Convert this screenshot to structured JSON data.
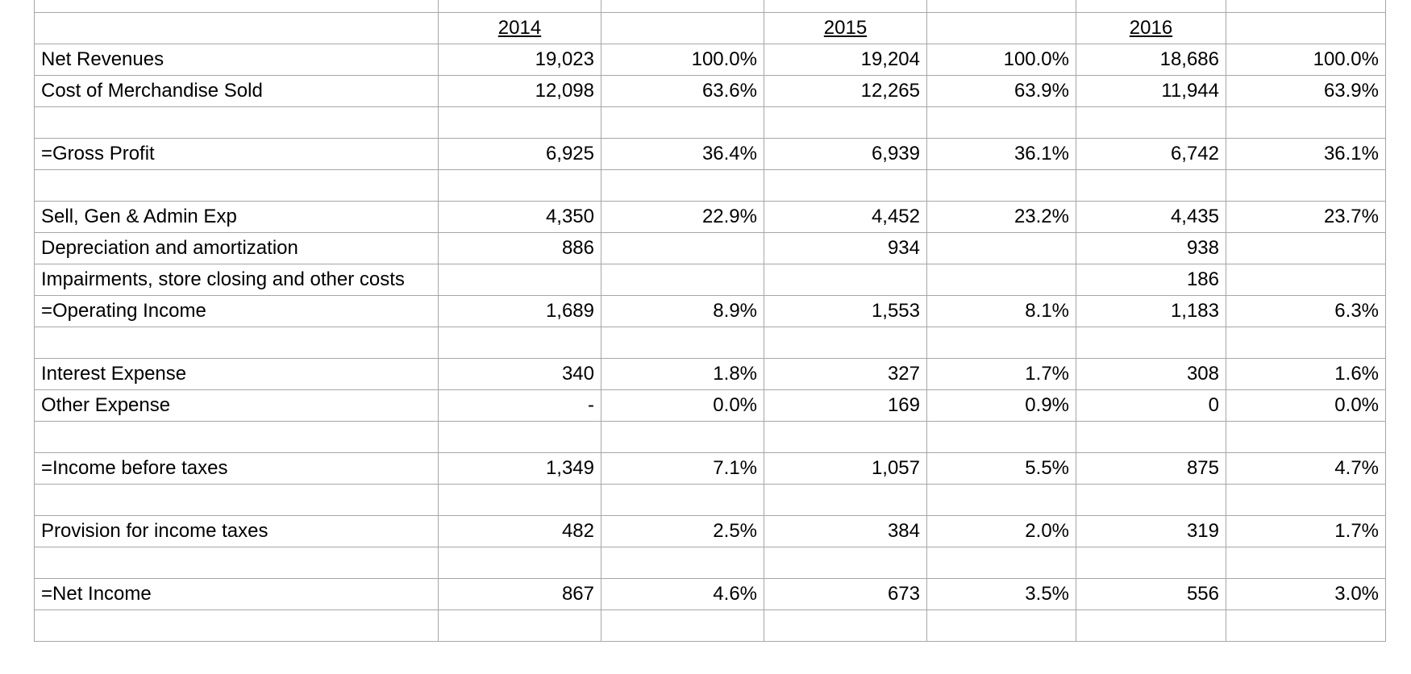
{
  "header": {
    "years": [
      "2014",
      "2015",
      "2016"
    ]
  },
  "rows": [
    {
      "label": "Net Revenues",
      "cells": [
        "19,023",
        "100.0%",
        "19,204",
        "100.0%",
        "18,686",
        "100.0%"
      ]
    },
    {
      "label": "Cost of Merchandise Sold",
      "cells": [
        "12,098",
        "63.6%",
        "12,265",
        "63.9%",
        "11,944",
        "63.9%"
      ]
    },
    null,
    {
      "label": "=Gross Profit",
      "cells": [
        "6,925",
        "36.4%",
        "6,939",
        "36.1%",
        "6,742",
        "36.1%"
      ]
    },
    null,
    {
      "label": "Sell, Gen & Admin Exp",
      "cells": [
        "4,350",
        "22.9%",
        "4,452",
        "23.2%",
        "4,435",
        "23.7%"
      ]
    },
    {
      "label": "Depreciation and amortization",
      "cells": [
        "886",
        null,
        "934",
        null,
        "938",
        null
      ]
    },
    {
      "label": "Impairments, store closing and other costs",
      "cells": [
        null,
        null,
        null,
        null,
        "186",
        null
      ]
    },
    {
      "label": "=Operating Income",
      "cells": [
        "1,689",
        "8.9%",
        "1,553",
        "8.1%",
        "1,183",
        "6.3%"
      ]
    },
    null,
    {
      "label": "Interest Expense",
      "cells": [
        "340",
        "1.8%",
        "327",
        "1.7%",
        "308",
        "1.6%"
      ]
    },
    {
      "label": "Other Expense",
      "cells": [
        "-",
        "0.0%",
        "169",
        "0.9%",
        "0",
        "0.0%"
      ]
    },
    null,
    {
      "label": "=Income before taxes",
      "cells": [
        "1,349",
        "7.1%",
        "1,057",
        "5.5%",
        "875",
        "4.7%"
      ]
    },
    null,
    {
      "label": "Provision for income taxes",
      "cells": [
        "482",
        "2.5%",
        "384",
        "2.0%",
        "319",
        "1.7%"
      ]
    },
    null,
    {
      "label": "=Net Income",
      "cells": [
        "867",
        "4.6%",
        "673",
        "3.5%",
        "556",
        "3.0%"
      ]
    },
    null
  ]
}
